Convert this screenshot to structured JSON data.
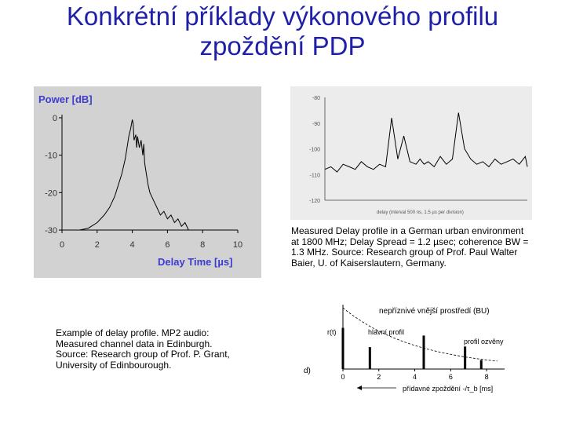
{
  "title": {
    "line1": "Konkrétní příklady výkonového profilu",
    "line2": "zpoždění PDP"
  },
  "captions": {
    "german": [
      "Measured Delay profile in a German urban environment",
      "at 1800 MHz; Delay Spread = 1.2 µsec; coherence BW =",
      "1.3 MHz. Source: Research group of Prof. Paul Walter",
      "Baier, U. of Kaiserslautern, Germany."
    ],
    "edinburgh": [
      "Example of delay profile. MP2 audio:",
      "Measured channel data in Edinburgh.",
      "Source: Research group of Prof. P. Grant,",
      "University of Edinbourough."
    ]
  },
  "colors": {
    "title": "#1f1fa8",
    "axis_label": "#3c3cd0",
    "plot": "#000000"
  },
  "chart_data": [
    {
      "type": "line",
      "title": "",
      "ylabel": "Power [dB]",
      "xlabel": "Delay Time [µs]",
      "xlim": [
        0,
        10
      ],
      "ylim": [
        -30,
        0
      ],
      "xticks": [
        "0",
        "2",
        "4",
        "6",
        "8",
        "10"
      ],
      "yticks": [
        "0",
        "-10",
        "-20",
        "-30"
      ],
      "x": [
        0.0,
        0.5,
        1.0,
        1.5,
        2.0,
        2.4,
        2.7,
        3.0,
        3.2,
        3.4,
        3.6,
        3.7,
        3.8,
        3.9,
        4.0,
        4.05,
        4.1,
        4.2,
        4.25,
        4.3,
        4.4,
        4.5,
        4.6,
        4.65,
        4.7,
        4.8,
        4.9,
        5.0,
        5.2,
        5.4,
        5.6,
        5.8,
        6.0,
        6.2,
        6.4,
        6.6,
        6.8,
        7.0,
        7.2,
        7.5
      ],
      "y": [
        -30,
        -30,
        -30,
        -29.5,
        -28,
        -26,
        -24,
        -21,
        -18,
        -15,
        -11,
        -8,
        -5,
        -3,
        -0.5,
        -1.5,
        -6,
        -4.5,
        -8,
        -5,
        -8,
        -6,
        -10,
        -7,
        -12,
        -15,
        -18,
        -20,
        -22,
        -24,
        -26,
        -25,
        -27,
        -26,
        -28,
        -27,
        -29,
        -28,
        -30,
        -30
      ]
    },
    {
      "type": "line",
      "title": "",
      "ytick_labels": [
        "-80",
        "-90",
        "-100",
        "-110",
        "-120"
      ],
      "xlabel": "delay (interval 500 ns, 1.5 µs per division)",
      "x": [
        0,
        3,
        6,
        9,
        12,
        15,
        18,
        21,
        24,
        27,
        30,
        33,
        36,
        39,
        42,
        45,
        47,
        49,
        51,
        54,
        57,
        60,
        63,
        66,
        69,
        72,
        75,
        78,
        81,
        84,
        87,
        90,
        93,
        96,
        99,
        100
      ],
      "y": [
        -108,
        -107,
        -109,
        -106,
        -107,
        -108,
        -105,
        -107,
        -108,
        -106,
        -107,
        -88,
        -104,
        -95,
        -105,
        -106,
        -104,
        -106,
        -105,
        -107,
        -103,
        -106,
        -104,
        -86,
        -100,
        -104,
        -106,
        -105,
        -107,
        -104,
        -106,
        -105,
        -104,
        -106,
        -103,
        -107
      ]
    },
    {
      "type": "bar",
      "title": "nepříznivé vnější prostředí (BU)",
      "ylabel": "r(t)",
      "xlabel": "přídavné zpoždění -/τ_b [ms]",
      "xticks": [
        "0",
        "2",
        "4",
        "6",
        "8"
      ],
      "xlim": [
        0,
        9
      ],
      "x": [
        0,
        1.5,
        4.5,
        6.8,
        7.7
      ],
      "values": [
        0.64,
        0.34,
        0.52,
        0.35,
        0.14
      ],
      "curve_label": "",
      "annotations": [
        "hlavní profil",
        "profil ozvěny"
      ],
      "panel_label": "d)"
    }
  ]
}
